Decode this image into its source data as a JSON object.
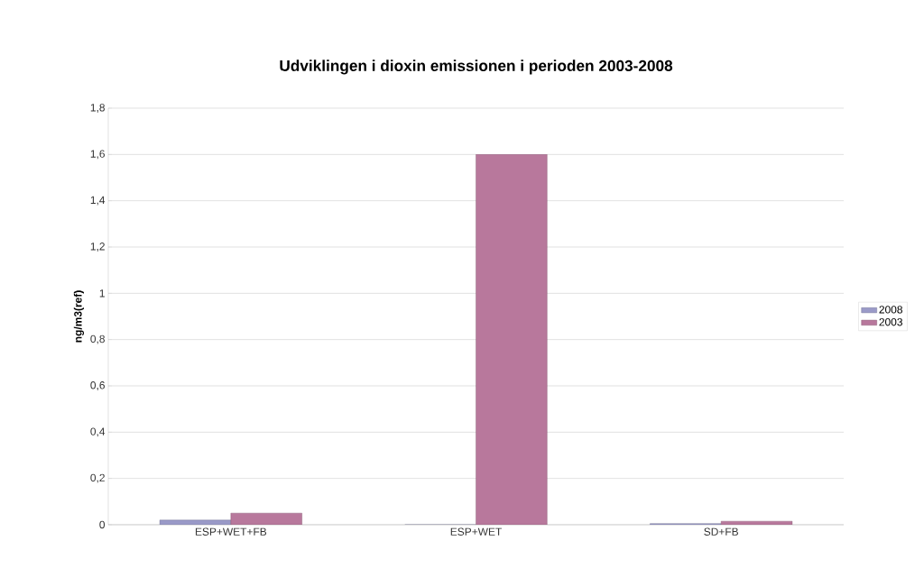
{
  "chart_data": {
    "type": "bar",
    "title": "Udviklingen i dioxin emissionen i perioden 2003-2008",
    "ylabel": "ng/m3(ref)",
    "categories": [
      "ESP+WET+FB",
      "ESP+WET",
      "SD+FB"
    ],
    "series": [
      {
        "name": "2008",
        "color": "#9a9ac8",
        "values": [
          0.02,
          0,
          0.005
        ]
      },
      {
        "name": "2003",
        "color": "#b8789c",
        "values": [
          0.05,
          1.6,
          0.015
        ]
      }
    ],
    "ylim": [
      0,
      1.8
    ],
    "yticks": [
      {
        "value": 0,
        "label": "0"
      },
      {
        "value": 0.2,
        "label": "0,2"
      },
      {
        "value": 0.4,
        "label": "0,4"
      },
      {
        "value": 0.6,
        "label": "0,6"
      },
      {
        "value": 0.8,
        "label": "0,8"
      },
      {
        "value": 1,
        "label": "1"
      },
      {
        "value": 1.2,
        "label": "1,2"
      },
      {
        "value": 1.4,
        "label": "1,4"
      },
      {
        "value": 1.6,
        "label": "1,6"
      },
      {
        "value": 1.8,
        "label": "1,8"
      }
    ],
    "grid": "y",
    "legend": "right"
  }
}
